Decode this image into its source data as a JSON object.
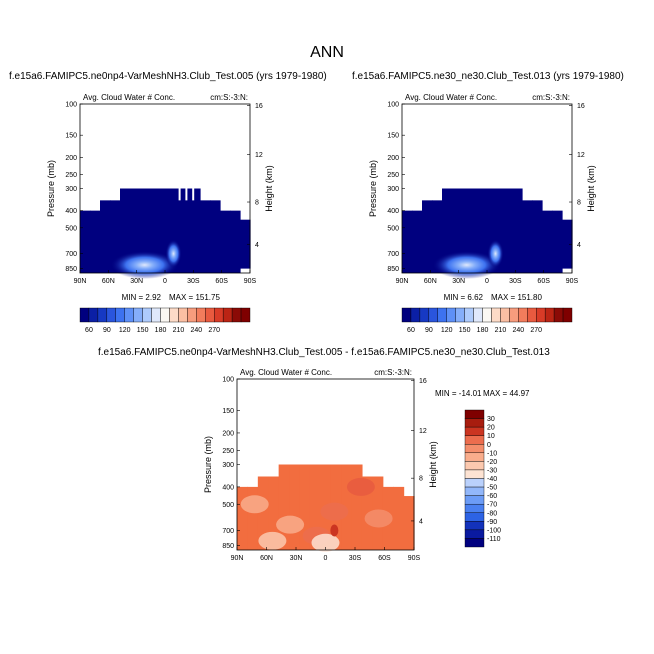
{
  "title": "ANN",
  "colors": {
    "top_scale": [
      "#00007f",
      "#0b1fa5",
      "#1639c3",
      "#2a55dd",
      "#3d72f0",
      "#5e90f7",
      "#85aefa",
      "#aecbfc",
      "#dfe8fb",
      "#fbf8f3",
      "#fddbc7",
      "#fbbfa3",
      "#f79c7d",
      "#f27c5c",
      "#e85a3f",
      "#d83b27",
      "#bb2414",
      "#8b0a06",
      "#7f0000"
    ],
    "diff_scale": [
      "#00007f",
      "#0a1aa0",
      "#1332bb",
      "#1f4ad2",
      "#2d63e4",
      "#4a80f0",
      "#6c9cf6",
      "#92b7fa",
      "#bad1fc",
      "#e1e9fb",
      "#fde3d3",
      "#fcc9af",
      "#f9ad8c",
      "#f48e6c",
      "#ec6d4e",
      "#df4f34",
      "#cb3521",
      "#a81d0f",
      "#7f0000"
    ]
  },
  "chart_data": [
    {
      "type": "heatmap",
      "panel_title": "f.e15a6.FAMIPC5.ne0np4-VarMeshNH3.Club_Test.005 (yrs 1979-1980)",
      "subtitle_left": "Avg. Cloud Water # Conc.",
      "subtitle_right": "cm:S:-3:N:",
      "xticks": [
        "90N",
        "60N",
        "30N",
        "0",
        "30S",
        "60S",
        "90S"
      ],
      "ylabel": "Pressure (mb)",
      "yticks": [
        "100",
        "150",
        "200",
        "250",
        "300",
        "400",
        "500",
        "700",
        "850"
      ],
      "y2label": "Height (km)",
      "y2ticks": [
        "16",
        "12",
        "8",
        "4"
      ],
      "min_label": "MIN =   2.92",
      "max_label": "MAX = 151.75",
      "min": 2.92,
      "max": 151.75,
      "colorbar_labels": [
        "60",
        "90",
        "120",
        "150",
        "180",
        "210",
        "240",
        "270"
      ]
    },
    {
      "type": "heatmap",
      "panel_title": "f.e15a6.FAMIPC5.ne30_ne30.Club_Test.013 (yrs 1979-1980)",
      "subtitle_left": "Avg. Cloud Water # Conc.",
      "subtitle_right": "cm:S:-3:N:",
      "xticks": [
        "90N",
        "60N",
        "30N",
        "0",
        "30S",
        "60S",
        "90S"
      ],
      "ylabel": "Pressure (mb)",
      "yticks": [
        "100",
        "150",
        "200",
        "250",
        "300",
        "400",
        "500",
        "700",
        "850"
      ],
      "y2label": "Height (km)",
      "y2ticks": [
        "16",
        "12",
        "8",
        "4"
      ],
      "min_label": "MIN =   6.62",
      "max_label": "MAX = 151.80",
      "min": 6.62,
      "max": 151.8,
      "colorbar_labels": [
        "60",
        "90",
        "120",
        "150",
        "180",
        "210",
        "240",
        "270"
      ]
    },
    {
      "type": "heatmap",
      "panel_title": "f.e15a6.FAMIPC5.ne0np4-VarMeshNH3.Club_Test.005 - f.e15a6.FAMIPC5.ne30_ne30.Club_Test.013",
      "subtitle_left": "Avg. Cloud Water # Conc.",
      "subtitle_right": "cm:S:-3:N:",
      "xticks": [
        "90N",
        "60N",
        "30N",
        "0",
        "30S",
        "60S",
        "90S"
      ],
      "ylabel": "Pressure (mb)",
      "yticks": [
        "100",
        "150",
        "200",
        "250",
        "300",
        "400",
        "500",
        "700",
        "850"
      ],
      "y2label": "Height (km)",
      "y2ticks": [
        "16",
        "12",
        "8",
        "4"
      ],
      "min_label": "MIN = -14.01",
      "max_label": "MAX =  44.97",
      "min": -14.01,
      "max": 44.97,
      "colorbar_labels": [
        "30",
        "20",
        "10",
        "0",
        "-10",
        "-20",
        "-30",
        "-40",
        "-50",
        "-60",
        "-70",
        "-80",
        "-90",
        "-100",
        "-110"
      ]
    }
  ]
}
